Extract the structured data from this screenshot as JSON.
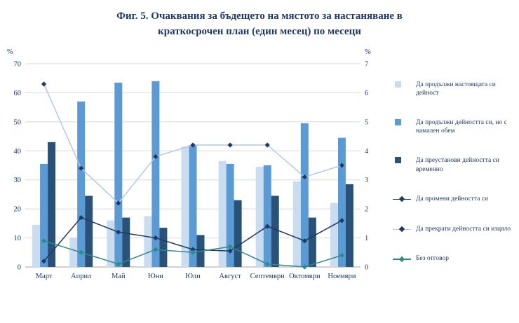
{
  "title": {
    "line1": "Фиг. 5. Очаквания за бъдещето на мястото за настаняване в",
    "line2": "краткосрочен план (един месец) по месеци"
  },
  "chart_data": {
    "type": "combo-bar-line",
    "categories": [
      "Март",
      "Април",
      "Май",
      "Юни",
      "Юли",
      "Август",
      "Септември",
      "Октомври",
      "Ноември"
    ],
    "bar_series": [
      {
        "name": "Да продължи настоящата си дейност",
        "color": "#C9DCF0",
        "values": [
          14.5,
          10,
          16,
          17.5,
          41.5,
          36.5,
          34.5,
          29.5,
          22
        ]
      },
      {
        "name": "Да продължи дейността си, но с намален обем",
        "color": "#5B9BD5",
        "values": [
          35.5,
          57,
          63.5,
          64,
          42,
          35.5,
          35,
          49.5,
          44.5
        ]
      },
      {
        "name": "Да преустанови дейността си временно",
        "color": "#2A5278",
        "values": [
          43,
          24.5,
          17,
          13.5,
          11,
          23,
          24.5,
          17,
          28.5
        ]
      }
    ],
    "line_series": [
      {
        "name": "Да промени дейността си",
        "color": "#1F3864",
        "marker_color": "#1F3864",
        "axis": "right",
        "values": [
          0.2,
          1.7,
          1.2,
          1.0,
          0.6,
          0.55,
          1.4,
          0.9,
          1.6
        ]
      },
      {
        "name": "Да прекрати дейността си изцяло",
        "color": "#B4C7E7",
        "marker_color": "#1F3864",
        "axis": "right",
        "values": [
          6.3,
          3.4,
          2.2,
          3.8,
          4.2,
          4.2,
          4.2,
          3.1,
          3.5
        ]
      },
      {
        "name": "Без отговор",
        "color": "#2E8B8B",
        "marker_color": "#2E8B8B",
        "axis": "right",
        "values": [
          0.9,
          0.5,
          0.1,
          0.6,
          0.5,
          0.7,
          0.1,
          0.0,
          0.4
        ]
      }
    ],
    "left_axis": {
      "label": "%",
      "min": 0,
      "max": 70,
      "step": 10
    },
    "right_axis": {
      "label": "%",
      "min": 0,
      "max": 7,
      "step": 1
    },
    "grid": true,
    "legend_position": "right"
  }
}
